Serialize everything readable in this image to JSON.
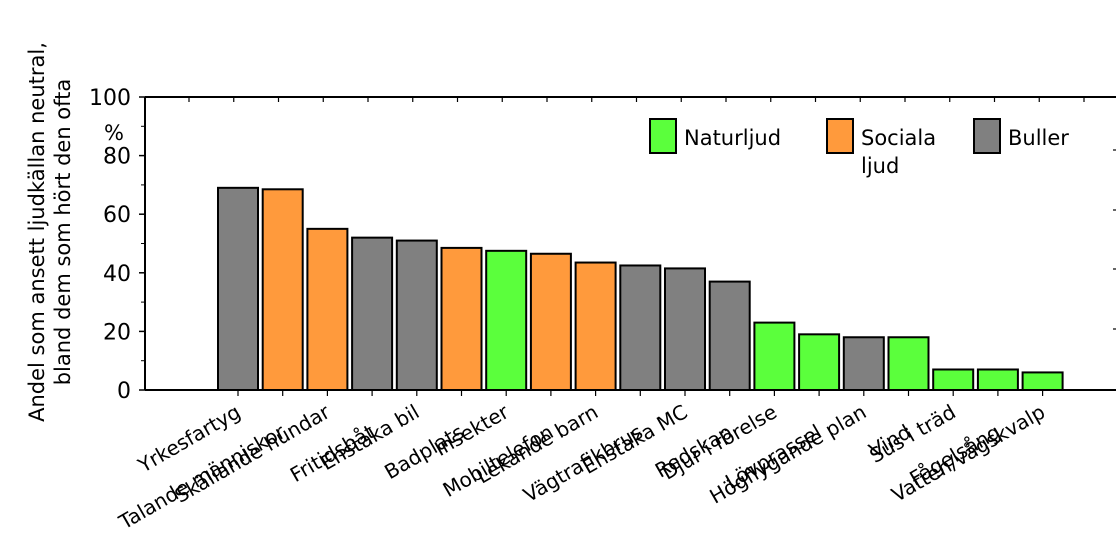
{
  "chart_data": {
    "type": "bar",
    "ylabel_line1": "Andel som ansett ljudkällan neutral,",
    "ylabel_line2": "bland dem som hört den ofta",
    "yunit": "%",
    "ylim": [
      0,
      100
    ],
    "yticks": [
      0,
      20,
      40,
      60,
      80,
      100
    ],
    "grid": false,
    "legend": {
      "placement": "top-right",
      "items": [
        {
          "key": "natur",
          "lines": [
            "Naturljud"
          ],
          "color": "#5bff3c"
        },
        {
          "key": "social",
          "lines": [
            "Sociala",
            "ljud"
          ],
          "color": "#ff9a3c"
        },
        {
          "key": "buller",
          "lines": [
            "Buller"
          ],
          "color": "#808080"
        }
      ]
    },
    "categories": [
      "Yrkesfartyg",
      "Talande människor",
      "Skällande hundar",
      "Fritidsbåt",
      "Enstaka bil",
      "Badplats",
      "Insekter",
      "Mobiltelefon",
      "Lekande barn",
      "Vägtrafikbrus",
      "Enstaka MC",
      "Redskap",
      "Djur i rörelse",
      "Lövprassel",
      "Högflygande plan",
      "Vind",
      "Sus i träd",
      "Fågelsång",
      "Vatten/vågskvalp"
    ],
    "values": [
      69,
      68.5,
      55,
      52,
      51,
      48.5,
      47.5,
      46.5,
      43.5,
      42.5,
      41.5,
      37,
      23,
      19,
      18,
      18,
      7,
      7,
      6
    ],
    "groups": [
      "buller",
      "social",
      "social",
      "buller",
      "buller",
      "social",
      "natur",
      "social",
      "social",
      "buller",
      "buller",
      "buller",
      "natur",
      "natur",
      "buller",
      "natur",
      "natur",
      "natur",
      "natur"
    ]
  }
}
